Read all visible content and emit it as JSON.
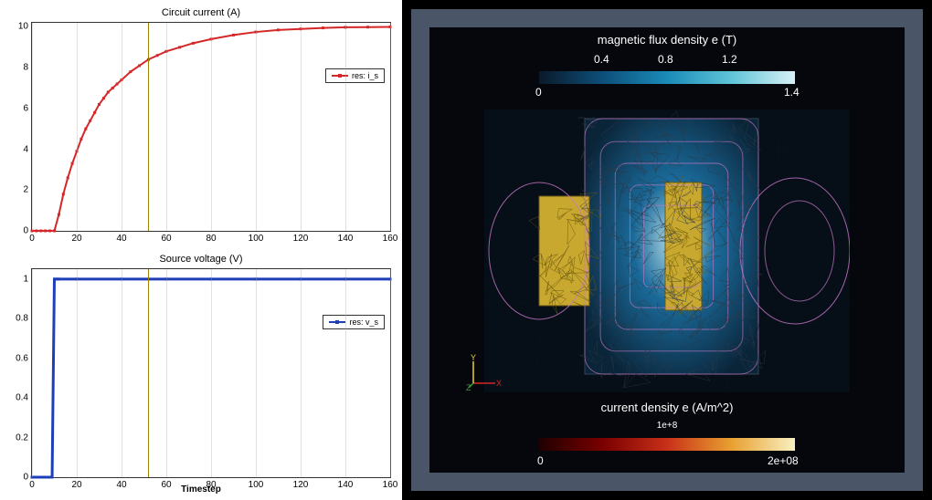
{
  "left": {
    "top_chart": {
      "type": "line",
      "title": "Circuit current (A)",
      "legend": "res: i_s",
      "series_color": "#d62728",
      "marker_color": "#d62728",
      "line_width": 2,
      "marker_size": 3,
      "xlim": [
        0,
        160
      ],
      "ylim": [
        0,
        10.2
      ],
      "xticks": [
        0,
        20,
        40,
        60,
        80,
        100,
        120,
        140,
        160
      ],
      "yticks": [
        0,
        2,
        4,
        6,
        8,
        10
      ],
      "grid_color": "#bbbbbb",
      "vertical_marker_x": 52,
      "vertical_marker_color": "#a08000",
      "x": [
        0,
        2,
        4,
        6,
        8,
        10,
        12,
        14,
        16,
        18,
        20,
        22,
        24,
        26,
        28,
        30,
        32,
        34,
        36,
        38,
        40,
        44,
        48,
        52,
        56,
        60,
        66,
        72,
        80,
        90,
        100,
        110,
        120,
        130,
        140,
        150,
        160
      ],
      "y": [
        0,
        0,
        0,
        0,
        0,
        0,
        0.8,
        1.8,
        2.6,
        3.3,
        3.9,
        4.5,
        5.0,
        5.4,
        5.8,
        6.2,
        6.5,
        6.8,
        7.0,
        7.2,
        7.4,
        7.8,
        8.1,
        8.4,
        8.6,
        8.8,
        9.0,
        9.2,
        9.4,
        9.6,
        9.75,
        9.85,
        9.9,
        9.95,
        9.98,
        9.99,
        10.0
      ]
    },
    "bottom_chart": {
      "type": "line",
      "title": "Source voltage (V)",
      "xlabel": "Timestep",
      "legend": "res: v_s",
      "series_color": "#1f3fb8",
      "marker_color": "#1f3fb8",
      "line_width": 3,
      "marker_size": 3,
      "xlim": [
        0,
        160
      ],
      "ylim": [
        0,
        1.05
      ],
      "xticks": [
        0,
        20,
        40,
        60,
        80,
        100,
        120,
        140,
        160
      ],
      "yticks": [
        0,
        0.2,
        0.4,
        0.6,
        0.8,
        1
      ],
      "grid_color": "#bbbbbb",
      "vertical_marker_x": 52,
      "vertical_marker_color": "#a08000",
      "x": [
        0,
        2,
        4,
        6,
        8,
        9,
        10,
        11,
        12,
        20,
        40,
        60,
        80,
        100,
        120,
        140,
        160
      ],
      "y": [
        0,
        0,
        0,
        0,
        0,
        0,
        1,
        1,
        1,
        1,
        1,
        1,
        1,
        1,
        1,
        1,
        1
      ]
    }
  },
  "right": {
    "frame_bg": "#4a5568",
    "inner_bg": "#05070c",
    "top_colorbar": {
      "label": "magnetic flux density e (T)",
      "ticks": [
        "0",
        "0.4",
        "0.8",
        "1.2",
        "1.4"
      ],
      "gradient": [
        "#0a1a2a",
        "#0d4f7a",
        "#1a8bb8",
        "#5fc4d8",
        "#d8f0f5"
      ]
    },
    "bottom_colorbar": {
      "label": "current density e (A/m^2)",
      "sublabel": "1e+8",
      "ticks": [
        "0",
        "2e+08"
      ],
      "gradient": [
        "#200000",
        "#7a0000",
        "#c83018",
        "#e8a030",
        "#f8f0c0"
      ]
    },
    "axis_triad": {
      "x_color": "#d62728",
      "y_color": "#e8d028",
      "z_color": "#3a9a3a",
      "labels": [
        "X",
        "Y",
        "Z"
      ]
    },
    "field_rect": {
      "fill_low": "#0a2438",
      "fill_mid": "#1a6a9a",
      "fill_high": "#b8e0ec"
    },
    "coil_rects": {
      "fill": "#c8a82f",
      "stroke": "#6a5810"
    },
    "contour_color": "#c878c8",
    "mesh_line_color": "#2a3a4a"
  }
}
